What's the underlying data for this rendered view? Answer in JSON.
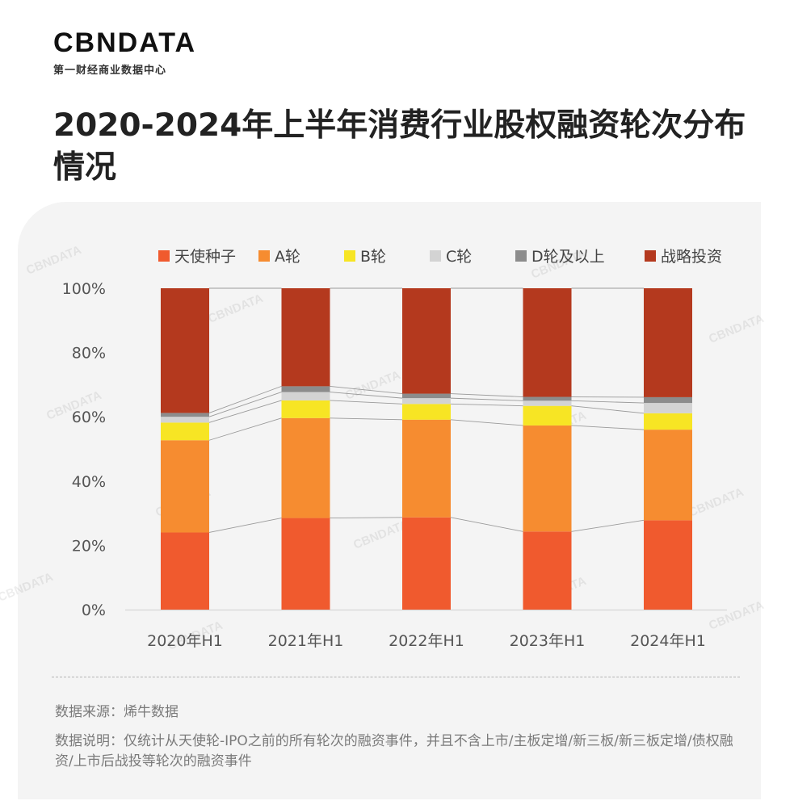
{
  "brand": {
    "logo_text": "CBNDATA",
    "logo_subtitle": "第一财经商业数据中心",
    "watermark_text": "CBNDATA"
  },
  "title": "2020-2024年上半年消费行业股权融资轮次分布情况",
  "footer": {
    "source": "数据来源：烯牛数据",
    "description": "数据说明：仅统计从天使轮-IPO之前的所有轮次的融资事件，并且不含上市/主板定增/新三板/新三板定增/债权融资/上市后战投等轮次的融资事件"
  },
  "chart_data": {
    "type": "bar",
    "stacked": true,
    "percent": true,
    "categories": [
      "2020年H1",
      "2021年H1",
      "2022年H1",
      "2023年H1",
      "2024年H1"
    ],
    "series": [
      {
        "name": "天使种子",
        "color": "#F05A2E",
        "values": [
          24,
          28.5,
          28.7,
          24.3,
          27.8
        ]
      },
      {
        "name": "A轮",
        "color": "#F68C30",
        "values": [
          28.7,
          31.1,
          30.4,
          33,
          28.2
        ]
      },
      {
        "name": "B轮",
        "color": "#F7E524",
        "values": [
          5.5,
          5.5,
          4.9,
          6.1,
          5.1
        ]
      },
      {
        "name": "C轮",
        "color": "#D3D3D3",
        "values": [
          1.8,
          2.6,
          1.8,
          1.6,
          3.2
        ]
      },
      {
        "name": "D轮及以上",
        "color": "#8C8C8C",
        "values": [
          1.2,
          1.8,
          1.4,
          1.2,
          1.8
        ]
      },
      {
        "name": "战略投资",
        "color": "#B4391E",
        "values": [
          38.8,
          30.5,
          32.8,
          33.8,
          33.9
        ]
      }
    ],
    "y_ticks": [
      "0%",
      "20%",
      "40%",
      "60%",
      "80%",
      "100%"
    ],
    "ylim": [
      0,
      100
    ],
    "legend_position": "top",
    "gridlines": false
  }
}
